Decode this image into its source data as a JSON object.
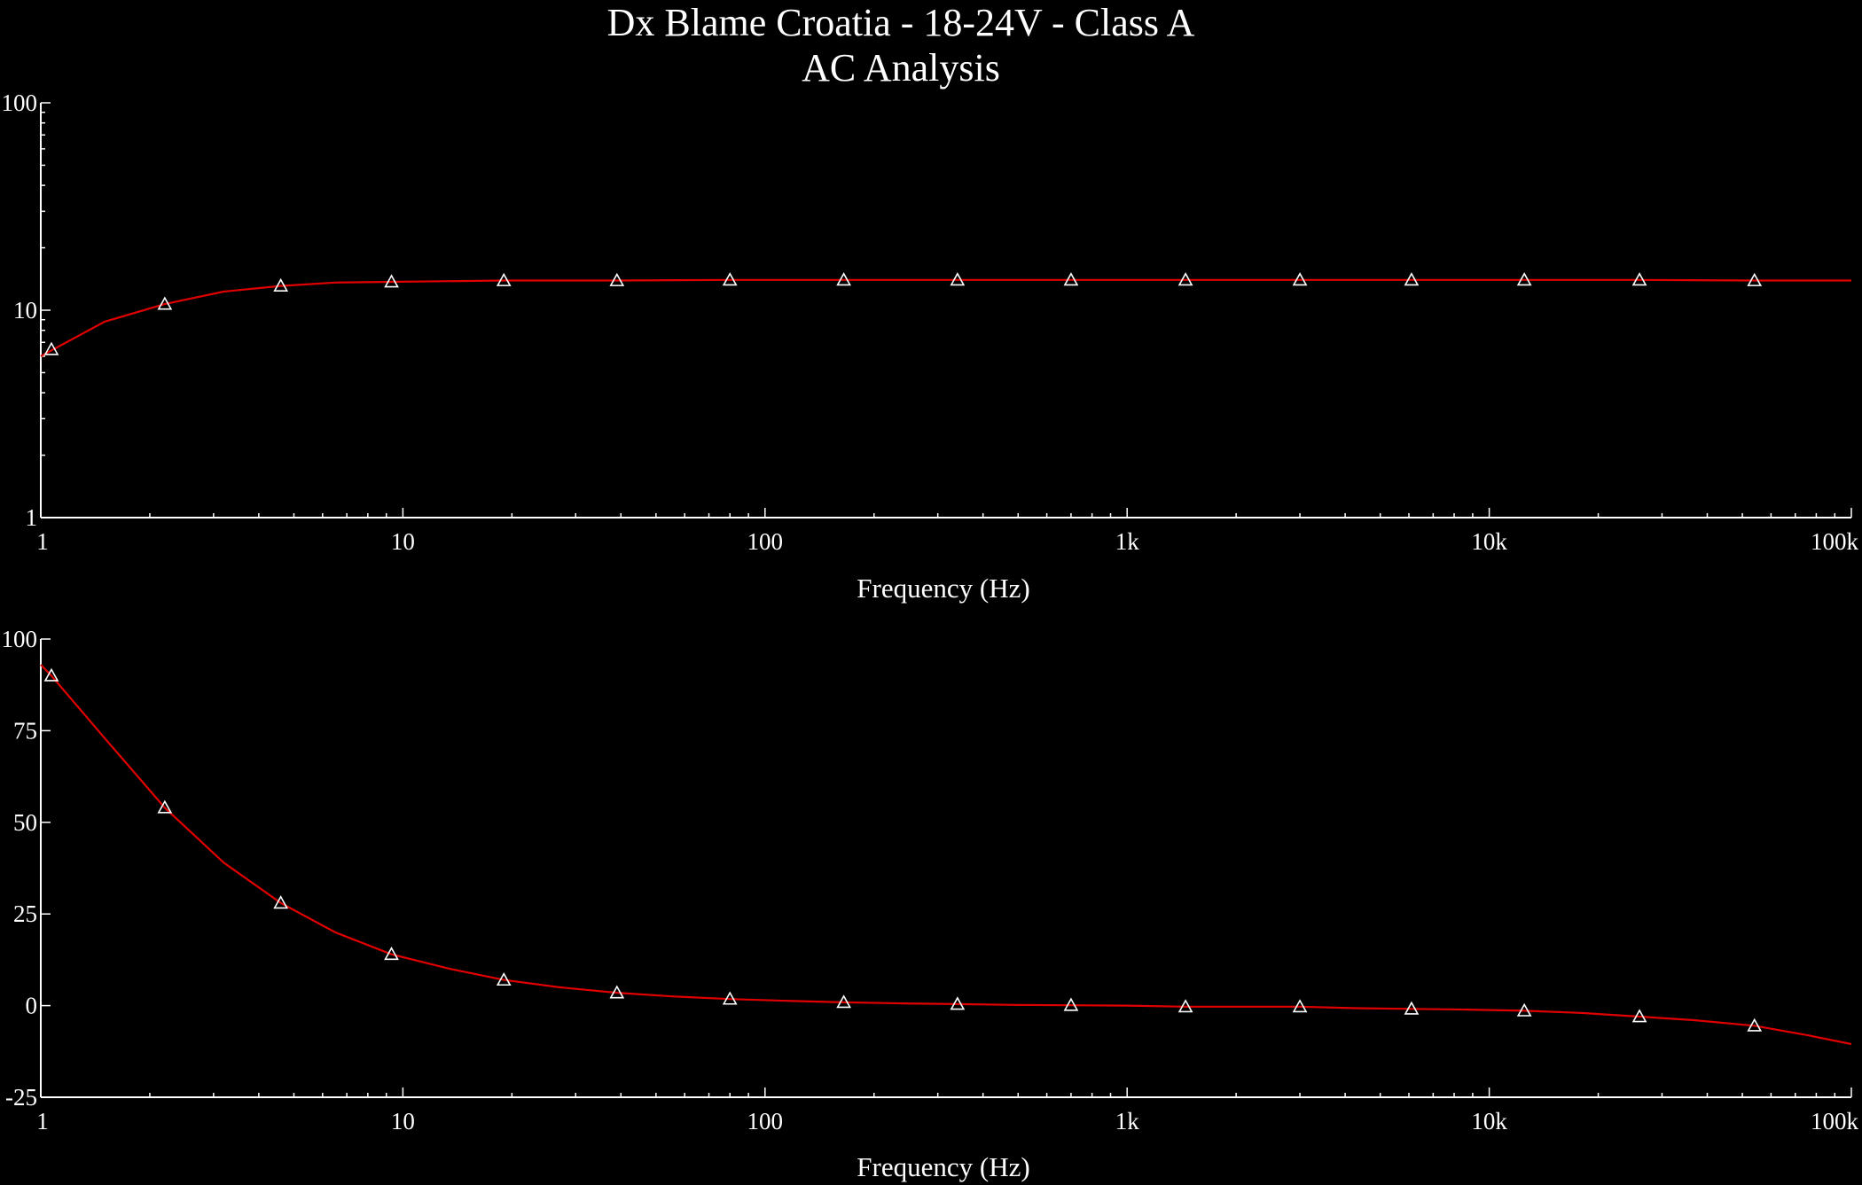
{
  "chart": {
    "title": "Dx Blame Croatia - 18-24V - Class A",
    "subtitle": "AC Analysis"
  },
  "colors": {
    "background": "#000000",
    "series": "#e00000",
    "axis": "#ffffff",
    "marker": "#ffffff"
  },
  "chart_data": [
    {
      "type": "line",
      "xlabel": "Frequency (Hz)",
      "ylabel": "",
      "x_scale": "log",
      "y_scale": "log",
      "xlim": [
        1,
        100000
      ],
      "ylim": [
        1,
        100
      ],
      "x_ticks": [
        1,
        10,
        100,
        1000,
        10000,
        100000
      ],
      "x_tick_labels": [
        "1",
        "10",
        "100",
        "1k",
        "10k",
        "100k"
      ],
      "y_ticks": [
        1,
        10,
        100
      ],
      "y_tick_labels": [
        "1",
        "10",
        "100"
      ],
      "grid": false,
      "marker": "triangle",
      "series": [
        {
          "x": [
            1,
            1.5,
            2.2,
            3.2,
            4.6,
            6.5,
            9.3,
            19,
            39,
            80,
            165,
            340,
            700,
            1450,
            3000,
            6100,
            12500,
            26000,
            54000,
            100000
          ],
          "y": [
            6.0,
            8.8,
            10.7,
            12.3,
            13.1,
            13.6,
            13.7,
            13.9,
            13.9,
            14.0,
            14.0,
            14.0,
            14.0,
            14.0,
            14.0,
            14.0,
            14.0,
            14.0,
            13.9,
            13.9
          ]
        }
      ],
      "marker_x": [
        1.07,
        2.2,
        4.6,
        9.3,
        19,
        39,
        80,
        165,
        340,
        700,
        1450,
        3000,
        6100,
        12500,
        26000,
        54000
      ]
    },
    {
      "type": "line",
      "xlabel": "Frequency (Hz)",
      "ylabel": "",
      "x_scale": "log",
      "y_scale": "linear",
      "xlim": [
        1,
        100000
      ],
      "ylim": [
        -25,
        100
      ],
      "x_ticks": [
        1,
        10,
        100,
        1000,
        10000,
        100000
      ],
      "x_tick_labels": [
        "1",
        "10",
        "100",
        "1k",
        "10k",
        "100k"
      ],
      "y_ticks": [
        -25,
        0,
        25,
        50,
        75,
        100
      ],
      "y_tick_labels": [
        "-25",
        "0",
        "25",
        "50",
        "75",
        "100"
      ],
      "grid": false,
      "marker": "triangle",
      "series": [
        {
          "x": [
            1,
            1.07,
            1.5,
            2.2,
            3.2,
            4.6,
            6.5,
            9.3,
            13.5,
            19,
            27,
            39,
            56,
            80,
            115,
            165,
            240,
            340,
            490,
            700,
            1000,
            1450,
            2100,
            3000,
            4300,
            6100,
            8700,
            12500,
            18000,
            26000,
            37000,
            54000,
            75000,
            100000
          ],
          "y": [
            93,
            90,
            73,
            54,
            39,
            28,
            20,
            14,
            10,
            7,
            5,
            3.5,
            2.5,
            1.8,
            1.3,
            0.9,
            0.6,
            0.4,
            0.2,
            0.1,
            0,
            -0.3,
            -0.3,
            -0.3,
            -0.7,
            -0.9,
            -1.1,
            -1.4,
            -2,
            -3,
            -4,
            -5.5,
            -8,
            -10.5
          ]
        }
      ],
      "marker_x": [
        1.07,
        2.2,
        4.6,
        9.3,
        19,
        39,
        80,
        165,
        340,
        700,
        1450,
        3000,
        6100,
        12500,
        26000,
        54000
      ]
    }
  ]
}
